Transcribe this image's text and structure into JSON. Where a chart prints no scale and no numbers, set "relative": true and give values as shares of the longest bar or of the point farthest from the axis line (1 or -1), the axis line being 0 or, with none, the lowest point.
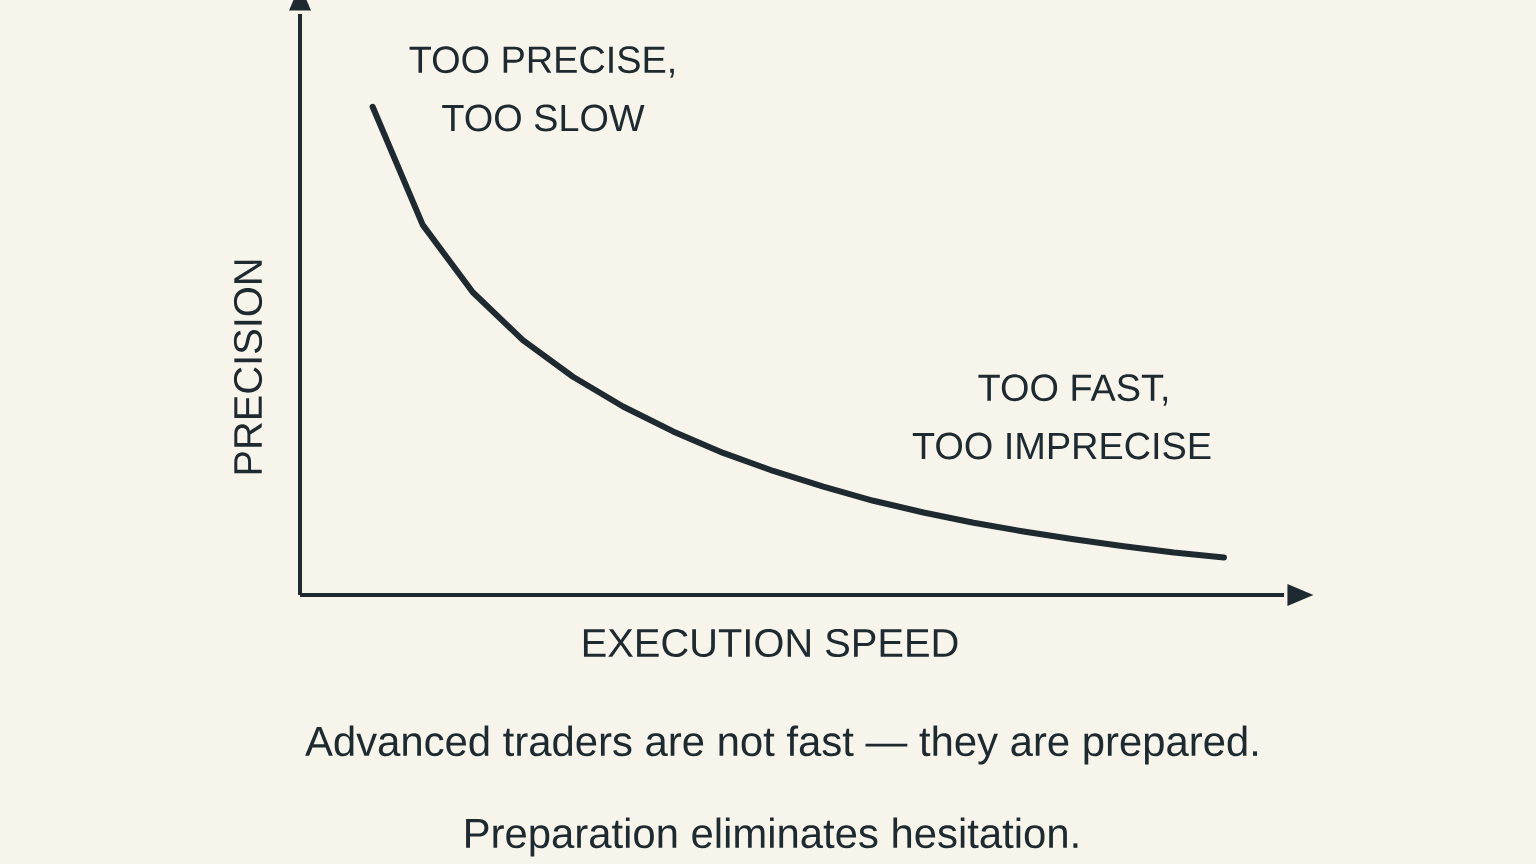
{
  "chart_data": {
    "type": "line",
    "relative": true,
    "xlabel": "EXECUTION SPEED",
    "ylabel": "PRECISION",
    "categories": [
      null,
      null,
      null,
      null,
      null,
      null,
      null,
      null,
      null,
      null,
      null,
      null,
      null,
      null,
      null,
      null,
      null,
      null
    ],
    "values": [
      1.0,
      0.758,
      0.62,
      0.522,
      0.447,
      0.386,
      0.335,
      0.291,
      0.254,
      0.222,
      0.193,
      0.169,
      0.148,
      0.13,
      0.114,
      0.1,
      0.087,
      0.077
    ],
    "color": "#1f2a30",
    "marker": "none",
    "line_style": "solid",
    "annotations": [
      "TOO PRECISE,",
      "TOO SLOW",
      "TOO FAST,",
      "TOO IMPRECISE",
      "Advanced traders are not fast — they are prepared.",
      "Preparation eliminates hesitation."
    ]
  }
}
